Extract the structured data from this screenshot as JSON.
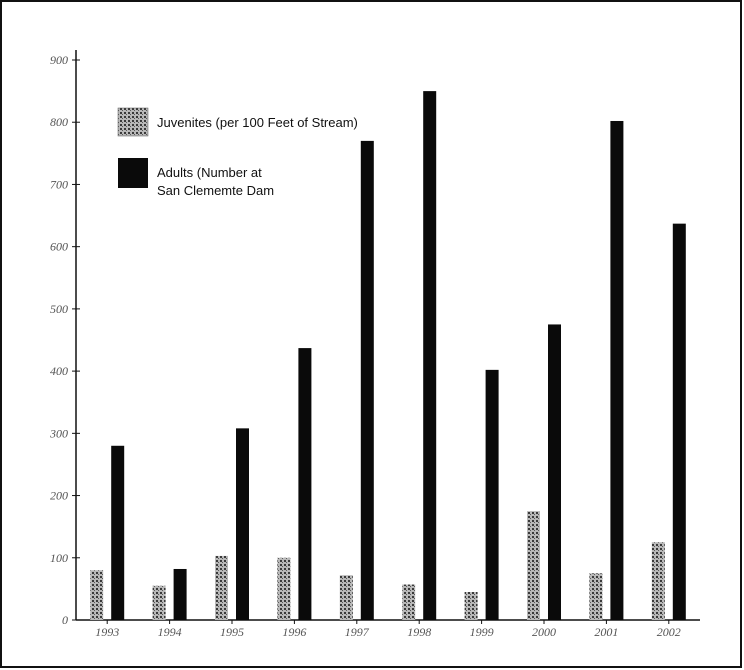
{
  "chart_data": {
    "type": "bar",
    "title": "",
    "xlabel": "",
    "ylabel": "",
    "categories": [
      "1993",
      "1994",
      "1995",
      "1996",
      "1997",
      "1998",
      "1999",
      "2000",
      "2001",
      "2002"
    ],
    "ylim": [
      0,
      900
    ],
    "yticks": [
      0,
      100,
      200,
      300,
      400,
      500,
      600,
      700,
      800,
      900
    ],
    "grid": false,
    "legend_position": "top-left",
    "series": [
      {
        "name": "Juvenites (per 100 Feet of Stream)",
        "values": [
          80,
          55,
          103,
          100,
          72,
          57,
          45,
          175,
          75,
          125
        ],
        "color": "#8a8a8a",
        "pattern": "stippled"
      },
      {
        "name": "Adults (Number at San Clememte Dam",
        "legend_lines": [
          "Adults (Number at",
          "San Clememte Dam"
        ],
        "values": [
          280,
          82,
          308,
          437,
          770,
          850,
          402,
          475,
          802,
          637
        ],
        "color": "#0a0a0a",
        "pattern": "solid"
      }
    ]
  }
}
